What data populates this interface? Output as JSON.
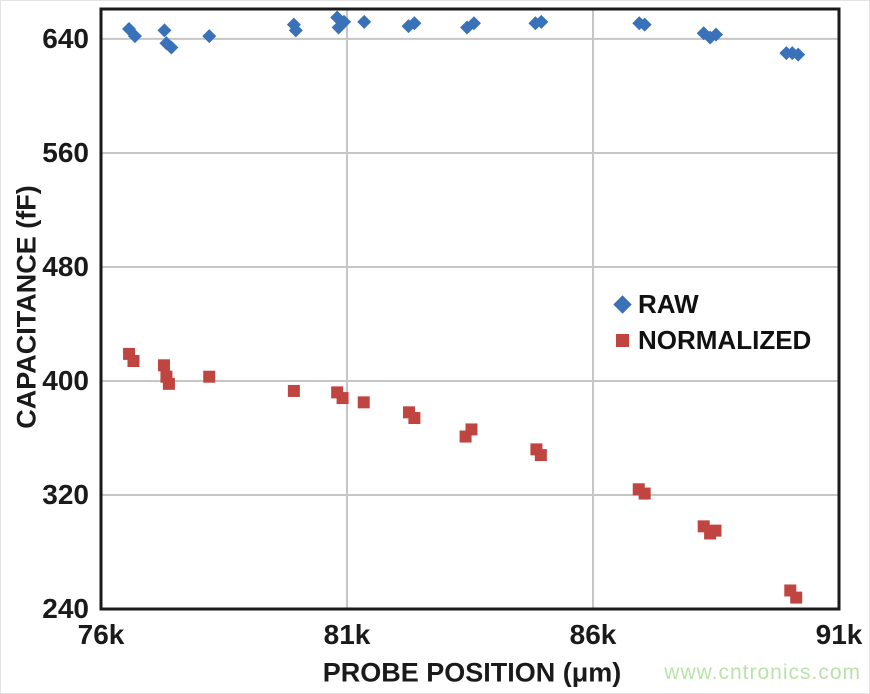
{
  "watermark": {
    "text": "www.cntronics.com",
    "color": "#b9e3aa"
  },
  "chart_data": {
    "type": "scatter",
    "title": "",
    "xlabel": "PROBE POSITION (μm)",
    "ylabel": "CAPACITANCE (fF)",
    "xlim": [
      76000,
      91000
    ],
    "ylim": [
      240,
      661
    ],
    "grid": true,
    "grid_color": "#c6c6c6",
    "axis_color": "#1a1a1a",
    "x_ticks": [
      {
        "value": 76000,
        "label": "76k"
      },
      {
        "value": 81000,
        "label": "81k"
      },
      {
        "value": 86000,
        "label": "86k"
      },
      {
        "value": 91000,
        "label": "91k"
      }
    ],
    "y_ticks": [
      {
        "value": 240,
        "label": "240"
      },
      {
        "value": 320,
        "label": "320"
      },
      {
        "value": 400,
        "label": "400"
      },
      {
        "value": 480,
        "label": "480"
      },
      {
        "value": 560,
        "label": "560"
      },
      {
        "value": 640,
        "label": "640"
      }
    ],
    "legend_position": "inside-right",
    "series": [
      {
        "name": "RAW",
        "marker": "diamond",
        "color": "#3a72b9",
        "points": [
          [
            76570,
            647
          ],
          [
            76690,
            642
          ],
          [
            77290,
            646
          ],
          [
            77330,
            637
          ],
          [
            77430,
            634
          ],
          [
            78200,
            642
          ],
          [
            79920,
            650
          ],
          [
            79960,
            646
          ],
          [
            80800,
            655
          ],
          [
            80830,
            648
          ],
          [
            80940,
            652
          ],
          [
            81350,
            652
          ],
          [
            82250,
            649
          ],
          [
            82370,
            651
          ],
          [
            83440,
            648
          ],
          [
            83580,
            651
          ],
          [
            84830,
            651
          ],
          [
            84950,
            652
          ],
          [
            86940,
            651
          ],
          [
            87050,
            650
          ],
          [
            88250,
            644
          ],
          [
            88380,
            641
          ],
          [
            88500,
            643
          ],
          [
            89930,
            630
          ],
          [
            90050,
            630
          ],
          [
            90170,
            629
          ]
        ]
      },
      {
        "name": "NORMALIZED",
        "marker": "square",
        "color": "#c04540",
        "points": [
          [
            76570,
            419
          ],
          [
            76660,
            414
          ],
          [
            77280,
            411
          ],
          [
            77330,
            403
          ],
          [
            77380,
            398
          ],
          [
            78200,
            403
          ],
          [
            79920,
            393
          ],
          [
            80800,
            392
          ],
          [
            80910,
            388
          ],
          [
            81340,
            385
          ],
          [
            82260,
            378
          ],
          [
            82370,
            374
          ],
          [
            83410,
            361
          ],
          [
            83530,
            366
          ],
          [
            84850,
            352
          ],
          [
            84940,
            348
          ],
          [
            86930,
            324
          ],
          [
            87050,
            321
          ],
          [
            88250,
            298
          ],
          [
            88380,
            293
          ],
          [
            88490,
            295
          ],
          [
            90010,
            253
          ],
          [
            90130,
            248
          ]
        ]
      }
    ]
  }
}
